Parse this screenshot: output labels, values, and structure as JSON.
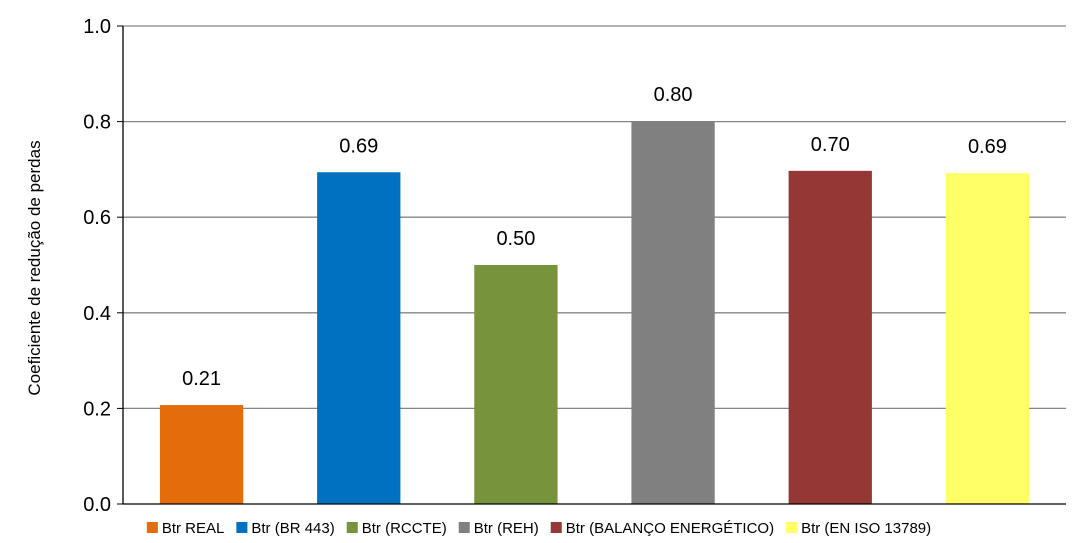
{
  "chart_data": {
    "type": "bar",
    "categories": [
      "Btr REAL",
      "Btr (BR 443)",
      "Btr (RCCTE)",
      "Btr (REH)",
      "Btr (BALANÇO ENERGÉTICO)",
      "Btr (EN ISO 13789)"
    ],
    "values": [
      0.207,
      0.694,
      0.5,
      0.801,
      0.697,
      0.692
    ],
    "data_labels": [
      "0.21",
      "0.69",
      "0.50",
      "0.80",
      "0.70",
      "0.69"
    ],
    "colors": [
      "#E46C0A",
      "#0070C0",
      "#77933C",
      "#808080",
      "#953735",
      "#FFFF66"
    ],
    "ylabel": "Coeficiente de redução de perdas",
    "xlabel": "",
    "ylim": [
      0,
      1.0
    ],
    "yticks": [
      "0.0",
      "0.2",
      "0.4",
      "0.6",
      "0.8",
      "1.0"
    ],
    "grid": true,
    "legend_position": "bottom"
  }
}
